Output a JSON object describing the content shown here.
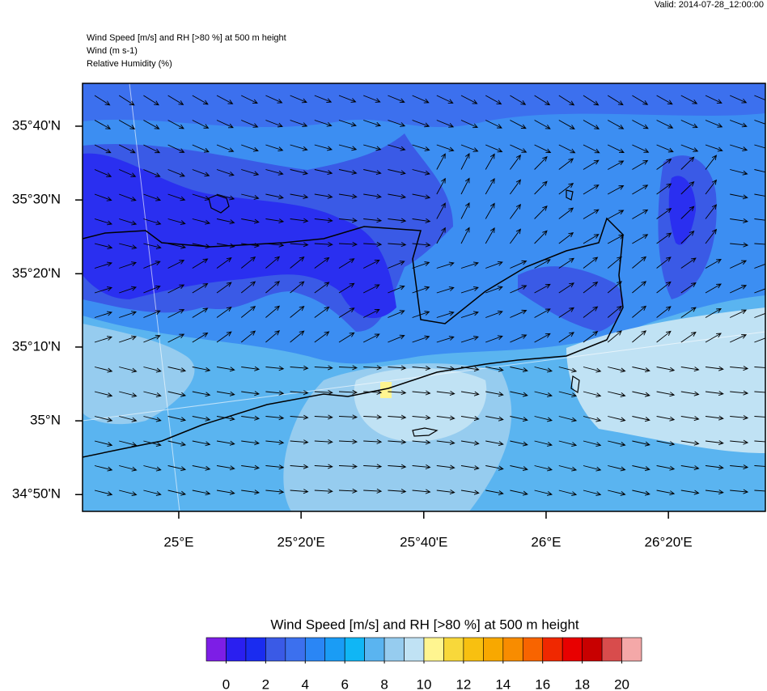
{
  "valid": "Valid: 2014-07-28_12:00:00",
  "title_lines": [
    "Wind Speed [m/s] and RH [>80 %] at 500 m height",
    "Wind   (m s-1)",
    "Relative Humidity   (%)"
  ],
  "map": {
    "xlim": [
      24.738,
      26.597
    ],
    "ylim": [
      34.795,
      35.764
    ],
    "xticks": [
      {
        "value": 25,
        "label": "25°E"
      },
      {
        "value": 25.333,
        "label": "25°20'E"
      },
      {
        "value": 25.667,
        "label": "25°40'E"
      },
      {
        "value": 26,
        "label": "26°E"
      },
      {
        "value": 26.333,
        "label": "26°20'E"
      }
    ],
    "yticks": [
      {
        "value": 34.833,
        "label": "34°50'N"
      },
      {
        "value": 35,
        "label": "35°N"
      },
      {
        "value": 35.167,
        "label": "35°10'N"
      },
      {
        "value": 35.333,
        "label": "35°20'N"
      },
      {
        "value": 35.5,
        "label": "35°30'N"
      },
      {
        "value": 35.667,
        "label": "35°40'N"
      }
    ]
  },
  "colorbar": {
    "title": "Wind Speed [m/s] and RH [>80 %] at 500 m height",
    "lim": [
      -1,
      21
    ],
    "colors": [
      "#7d1ee6",
      "#2a1ff0",
      "#1a2cf0",
      "#3a5ae6",
      "#3c70ee",
      "#2a86f5",
      "#1a9cf5",
      "#10b6f5",
      "#5ab4f0",
      "#96ccef",
      "#c0e2f4",
      "#fff590",
      "#f8d83a",
      "#f8c010",
      "#f8a800",
      "#f88c00",
      "#f86400",
      "#f02800",
      "#e80000",
      "#c80000",
      "#d84c4c",
      "#f4a8a8"
    ],
    "ticks": [
      0,
      2,
      4,
      6,
      8,
      10,
      12,
      14,
      16,
      18,
      20
    ]
  }
}
